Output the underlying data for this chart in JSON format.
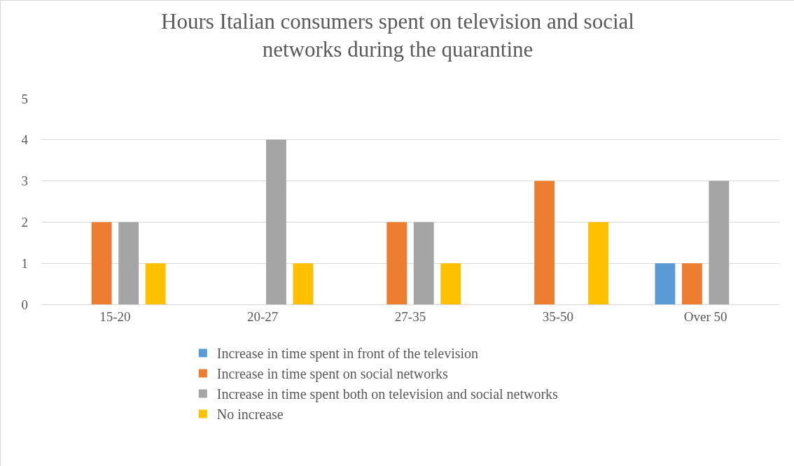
{
  "chart_data": {
    "type": "bar",
    "title": "Hours Italian consumers spent on television and social networks during the quarantine",
    "categories": [
      "15-20",
      "20-27",
      "27-35",
      "35-50",
      "Over 50"
    ],
    "series": [
      {
        "name": "Increase in time spent in front of the television",
        "color": "#5b9bd5",
        "values": [
          0,
          0,
          0,
          0,
          1
        ]
      },
      {
        "name": "Increase in time spent on social networks",
        "color": "#ed7d31",
        "values": [
          2,
          0,
          2,
          3,
          1
        ]
      },
      {
        "name": "Increase in time spent both on television and social networks",
        "color": "#a5a5a5",
        "values": [
          2,
          4,
          2,
          0,
          3
        ]
      },
      {
        "name": "No increase",
        "color": "#ffc000",
        "values": [
          1,
          1,
          1,
          2,
          0
        ]
      }
    ],
    "ylim": [
      0,
      5
    ],
    "yticks": [
      0,
      1,
      2,
      3,
      4,
      5
    ],
    "grid": "y",
    "legend": "bottom"
  }
}
